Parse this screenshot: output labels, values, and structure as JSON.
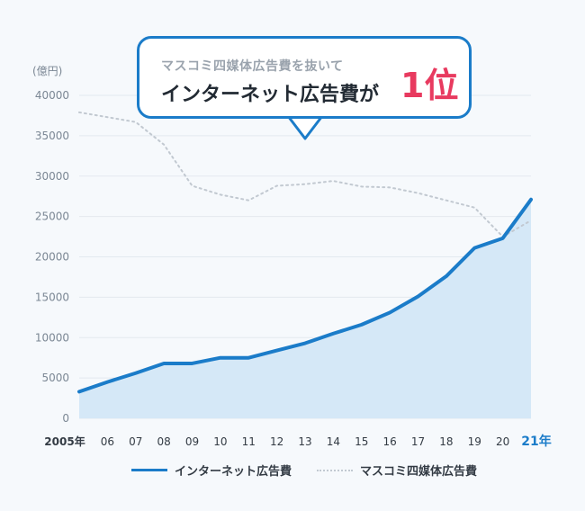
{
  "callout": {
    "subtitle": "マスコミ四媒体広告費を抜いて",
    "headline": "インターネット広告費が",
    "rank": "1位"
  },
  "colors": {
    "internet": "#1b7cc9",
    "internet_fill": "#d5e8f7",
    "mass_media": "#c2c9d1",
    "grid": "#e3e9ef",
    "tick_text": "#7b8794",
    "highlight": "#1b7cc9"
  },
  "chart_data": {
    "type": "area",
    "unit_label": "(億円)",
    "x": [
      "2005年",
      "06",
      "07",
      "08",
      "09",
      "10",
      "11",
      "12",
      "13",
      "14",
      "15",
      "16",
      "17",
      "18",
      "19",
      "20",
      "21年"
    ],
    "highlight_last_tick": true,
    "ylim": [
      0,
      40000
    ],
    "yticks": [
      0,
      5000,
      10000,
      15000,
      20000,
      25000,
      30000,
      35000,
      40000
    ],
    "grid": true,
    "legend_position": "bottom",
    "series": [
      {
        "name": "インターネット広告費",
        "style": "solid-area",
        "values": [
          3300,
          4500,
          5600,
          6800,
          6800,
          7500,
          7500,
          8400,
          9300,
          10500,
          11600,
          13100,
          15100,
          17600,
          21100,
          22300,
          27100
        ]
      },
      {
        "name": "マスコミ四媒体広告費",
        "style": "dotted",
        "values": [
          37900,
          37300,
          36700,
          33900,
          28800,
          27700,
          27000,
          28800,
          29000,
          29400,
          28700,
          28600,
          27900,
          27000,
          26100,
          22500,
          24500
        ]
      }
    ]
  }
}
